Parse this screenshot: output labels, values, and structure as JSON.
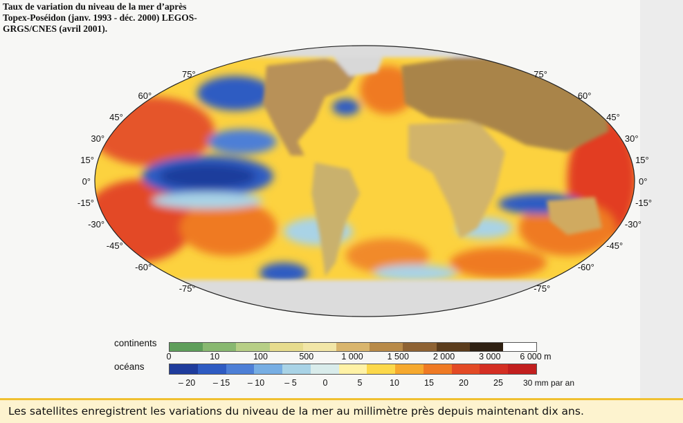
{
  "title": {
    "line1": "Taux de variation du niveau de la mer d’après",
    "line2": "Topex-Poséidon (janv. 1993 - déc. 2000) LEGOS-",
    "line3": "GRGS/CNES (avril 2001)."
  },
  "latitudes": {
    "left": [
      "75°",
      "60°",
      "45°",
      "30°",
      "15°",
      "0°",
      "-15°",
      "-30°",
      "-45°",
      "-60°",
      "-75°"
    ],
    "right": [
      "75°",
      "60°",
      "45°",
      "30°",
      "15°",
      "0°",
      "-15°",
      "-30°",
      "-45°",
      "-60°",
      "-75°"
    ]
  },
  "legend": {
    "continents": {
      "label": "continents",
      "ticks": [
        "0",
        "10",
        "100",
        "500",
        "1 000",
        "1 500",
        "2 000",
        "3 000",
        "6 000 m"
      ],
      "colors": [
        "#5e9e5a",
        "#88b870",
        "#b7cf86",
        "#e7dc8e",
        "#f2e6a7",
        "#d9b56d",
        "#b88a48",
        "#8e6233",
        "#5b3c1c",
        "#2e2012",
        "#ffffff"
      ]
    },
    "oceans": {
      "label": "océans",
      "ticks": [
        "– 20",
        "– 15",
        "– 10",
        "– 5",
        "0",
        "5",
        "10",
        "15",
        "20",
        "25",
        "30 mm par an"
      ],
      "colors": [
        "#1f3c9c",
        "#2e5bc2",
        "#4d7fd6",
        "#77aee3",
        "#a9d3e6",
        "#d9eceb",
        "#fff2a6",
        "#fcd84a",
        "#f6a92e",
        "#ef7a24",
        "#e34a25",
        "#d42f23",
        "#c21f1e"
      ]
    }
  },
  "caption": "Les satellites enregistrent les variations du niveau de la mer au millimètre près depuis maintenant dix ans."
}
